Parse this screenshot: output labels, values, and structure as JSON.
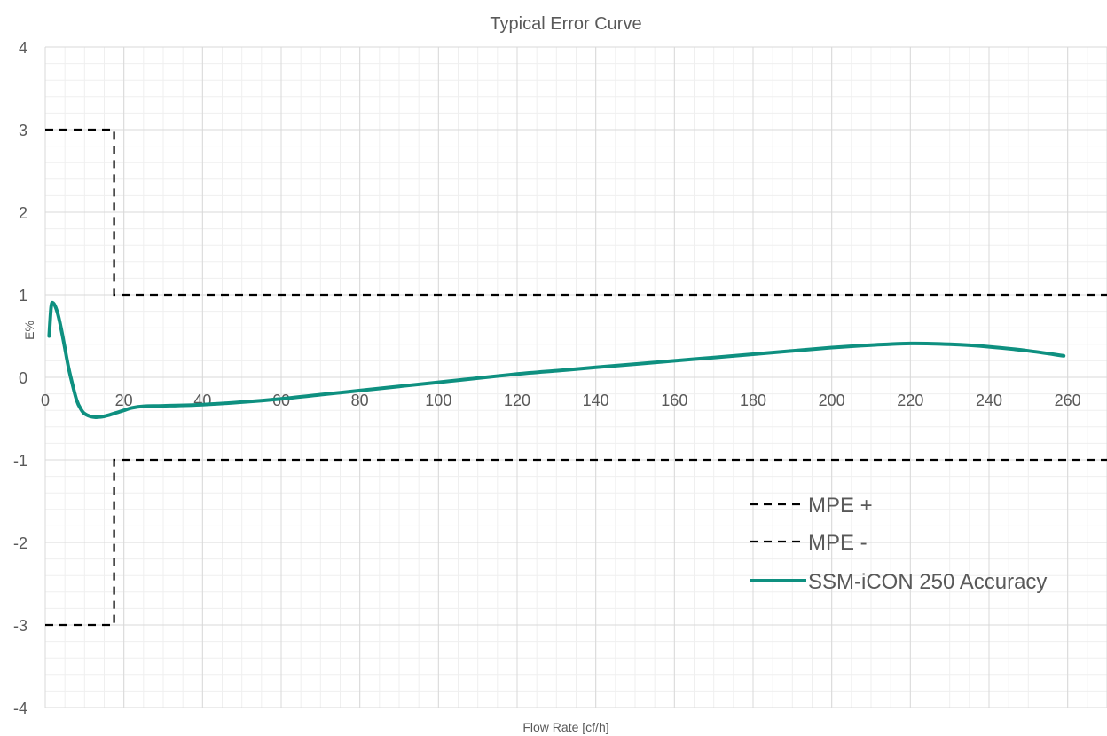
{
  "chart_data": {
    "type": "line",
    "title": "Typical Error Curve",
    "xlabel": "Flow Rate [cf/h]",
    "ylabel": "E%",
    "xlim": [
      0,
      270
    ],
    "ylim": [
      -4,
      4
    ],
    "x_ticks": [
      0,
      20,
      40,
      60,
      80,
      100,
      120,
      140,
      160,
      180,
      200,
      220,
      240,
      260
    ],
    "y_ticks": [
      -4,
      -3,
      -2,
      -1,
      0,
      1,
      2,
      3,
      4
    ],
    "grid": true,
    "minor_grid": true,
    "legend_position": "lower-right",
    "series": [
      {
        "name": "MPE +",
        "style": "dashed",
        "color": "#000000",
        "points": [
          [
            0,
            3
          ],
          [
            17.5,
            3
          ],
          [
            17.5,
            1
          ],
          [
            270,
            1
          ]
        ]
      },
      {
        "name": "MPE -",
        "style": "dashed",
        "color": "#000000",
        "points": [
          [
            0,
            -3
          ],
          [
            17.5,
            -3
          ],
          [
            17.5,
            -1
          ],
          [
            270,
            -1
          ]
        ]
      },
      {
        "name": "SSM-iCON 250 Accuracy",
        "style": "solid",
        "color": "#0E9080",
        "points": [
          [
            1,
            0.5
          ],
          [
            1.5,
            0.85
          ],
          [
            2,
            0.9
          ],
          [
            3,
            0.8
          ],
          [
            4,
            0.6
          ],
          [
            5,
            0.35
          ],
          [
            6,
            0.1
          ],
          [
            7,
            -0.1
          ],
          [
            8,
            -0.28
          ],
          [
            9,
            -0.38
          ],
          [
            10,
            -0.44
          ],
          [
            12,
            -0.48
          ],
          [
            14,
            -0.48
          ],
          [
            16,
            -0.46
          ],
          [
            18,
            -0.43
          ],
          [
            20,
            -0.4
          ],
          [
            22,
            -0.37
          ],
          [
            25,
            -0.35
          ],
          [
            30,
            -0.345
          ],
          [
            40,
            -0.33
          ],
          [
            50,
            -0.3
          ],
          [
            60,
            -0.26
          ],
          [
            70,
            -0.21
          ],
          [
            80,
            -0.16
          ],
          [
            90,
            -0.11
          ],
          [
            100,
            -0.06
          ],
          [
            110,
            -0.01
          ],
          [
            120,
            0.04
          ],
          [
            130,
            0.08
          ],
          [
            140,
            0.12
          ],
          [
            150,
            0.16
          ],
          [
            160,
            0.2
          ],
          [
            170,
            0.24
          ],
          [
            180,
            0.28
          ],
          [
            190,
            0.32
          ],
          [
            200,
            0.36
          ],
          [
            210,
            0.39
          ],
          [
            220,
            0.41
          ],
          [
            230,
            0.4
          ],
          [
            240,
            0.37
          ],
          [
            250,
            0.32
          ],
          [
            259,
            0.26
          ]
        ]
      }
    ]
  }
}
